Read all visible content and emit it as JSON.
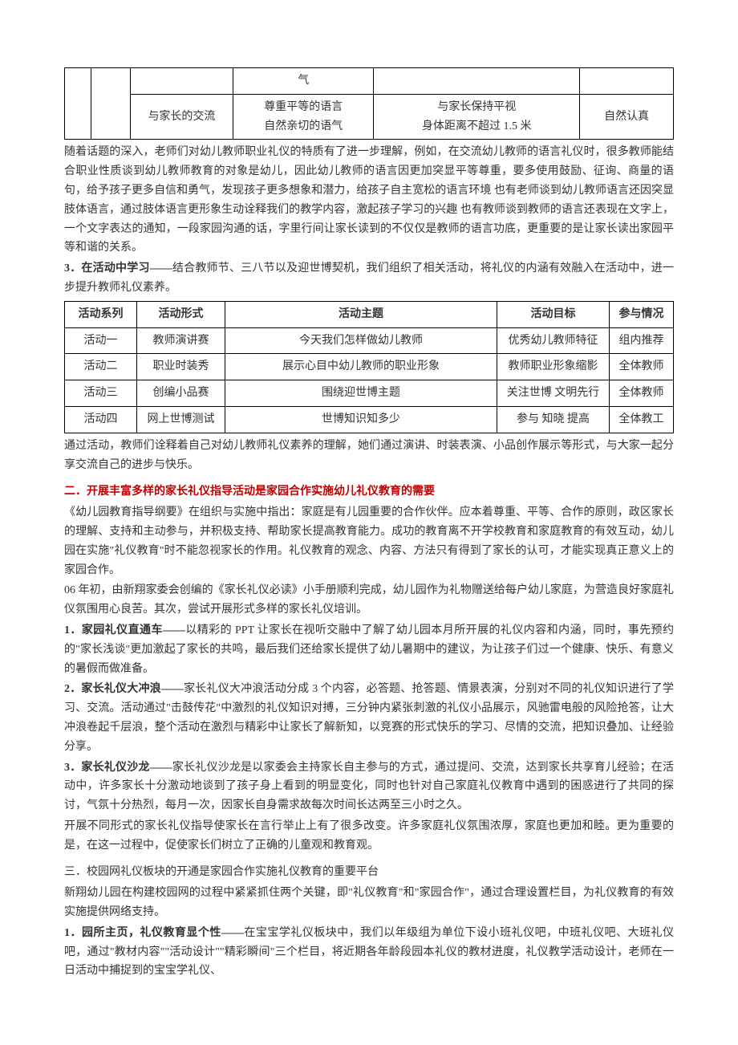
{
  "table1": {
    "rows": [
      {
        "c4": "气"
      },
      {
        "c3": "与家长的交流",
        "c4": "尊重平等的语言\n自然亲切的语气",
        "c5": "与家长保持平视\n身体距离不超过 1.5 米",
        "c6": "自然认真"
      }
    ]
  },
  "para1": "随着话题的深入，老师们对幼儿教师职业礼仪的特质有了进一步理解，例如，在交流幼儿教师的语言礼仪时，很多教师能结合职业性质谈到幼儿教师教育的对象是幼儿，因此幼儿教师的语言因更加突显平等尊重，要多使用鼓励、征询、商量的语句，给予孩子更多自信和勇气，发现孩子更多想象和潜力，给孩子自主宽松的语言环境 也有老师谈到幼儿教师语言还因突显肢体语言，通过肢体语言更形象生动诠释我们的教学内容，激起孩子学习的兴趣 也有教师谈到教师的语言还表现在文字上，一个文字表达的通知，一段家园沟通的话，字里行间让家长读到的不仅仅是教师的语言功底，更重要的是让家长读出家园平等和谐的关系。",
  "para2_lead": "3．在活动中学习——",
  "para2_rest": "结合教师节、三八节以及迎世博契机，我们组织了相关活动，将礼仪的内涵有效融入在活动中，进一步提升教师礼仪素养。",
  "table2": {
    "header": [
      "活动系列",
      "活动形式",
      "活动主题",
      "活动目标",
      "参与情况"
    ],
    "rows": [
      [
        "活动一",
        "教师演讲赛",
        "今天我们怎样做幼儿教师",
        "优秀幼儿教师特征",
        "组内推荐"
      ],
      [
        "活动二",
        "职业时装秀",
        "展示心目中幼儿教师的职业形象",
        "教师职业形象缩影",
        "全体教师"
      ],
      [
        "活动三",
        "创编小品赛",
        "围绕迎世博主题",
        "关注世博 文明先行",
        "全体教师"
      ],
      [
        "活动四",
        "网上世博测试",
        "世博知识知多少",
        "参与 知晓 提高",
        "全体教工"
      ]
    ]
  },
  "para3": "通过活动，教师们诠释着自己对幼儿教师礼仪素养的理解，她们通过演讲、时装表演、小品创作展示等形式，与大家一起分享交流自己的进步与快乐。",
  "heading2": "二．开展丰富多样的家长礼仪指导活动是家园合作实施幼儿礼仪教育的需要",
  "para4": "《幼儿园教育指导纲要》在组织与实施中指出：家庭是有儿园重要的合作伙伴。应本着尊重、平等、合作的原则，政区家长的理解、支持和主动参与，并积极支持、帮助家长提高教育能力。成功的教育离不开学校教育和家庭教育的有效互动，幼儿园在实施\"礼仪教育\"时不能忽视家长的作用。礼仪教育的观念、内容、方法只有得到了家长的认可，才能实现真正意义上的家园合作。",
  "para5": "06 年初，由新翔家委会创编的《家长礼仪必读》小手册顺利完成，幼儿园作为礼物赠送给每户幼儿家庭，为营造良好家庭礼仪氛围用心良苦。其次，尝试开展形式多样的家长礼仪培训。",
  "item1_lead": "1．家园礼仪直通车——",
  "item1_rest": "以精彩的 PPT 让家长在视听交融中了解了幼儿园本月所开展的礼仪内容和内涵，同时，事先预约的\"家长浅谈\"更加激起了家长的共鸣，最后我们还给家长提供了幼儿暑期中的建议，为让孩子们过一个健康、快乐、有意义的暑假而做准备。",
  "item2_lead": "2．家长礼仪大冲浪——",
  "item2_rest": "家长礼仪大冲浪活动分成 3 个内容，必答题、抢答题、情景表演，分别对不同的礼仪知识进行了学习、交流。活动通过\"击鼓传花\"中激烈的礼仪知识对搏，三分钟内紧张刺激的礼仪小品展示，风驰雷电般的风险抢答，让大冲浪卷起千层浪，整个活动在激烈与精彩中让家长了解新知，以竞赛的形式快乐的学习、尽情的交流，把知识叠加、让经验分享。",
  "item3_lead": "3．家长礼仪沙龙——",
  "item3_rest": "家长礼仪沙龙是以家委会主持家长自主参与的方式，通过提问、交流，达到家长共享育儿经验；在活动中，许多家长十分激动地谈到了孩子身上看到的明显变化，同时也针对自己家庭礼仪教育中遇到的困惑进行了共同的探讨，气氛十分热烈，每月一次，因家长自身需求故每次时间长达两至三小时之久。",
  "para6": "开展不同形式的家长礼仪指导使家长在言行举止上有了很多改变。许多家庭礼仪氛围浓厚，家庭也更加和睦。更为重要的是，在这一过程中，促使家长们树立了正确的儿童观和教育观。",
  "heading3": "三．校园网礼仪板块的开通是家园合作实施礼仪教育的重要平台",
  "para7": "新翔幼儿园在构建校园网的过程中紧紧抓住两个关键，即\"礼仪教育\"和\"家园合作\"，通过合理设置栏目，为礼仪教育的有效实施提供网络支持。",
  "item4_lead": "1．园所主页，礼仪教育显个性——",
  "item4_rest": "在宝宝学礼仪板块中，我们以年级组为单位下设小班礼仪吧，中班礼仪吧、大班礼仪吧，通过\"教材内容\"\"活动设计\"\"精彩瞬间\"三个栏目，将近期各年龄段园本礼仪的教材进度，礼仪教学活动设计，老师在一日活动中捕捉到的宝宝学礼仪、"
}
